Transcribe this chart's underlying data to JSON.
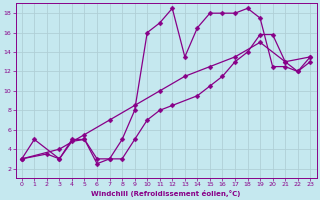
{
  "xlabel": "Windchill (Refroidissement éolien,°C)",
  "bg_color": "#c5e8ef",
  "line_color": "#880088",
  "grid_color": "#b0cfd6",
  "xlim": [
    -0.5,
    23.5
  ],
  "ylim": [
    1,
    19
  ],
  "xticks": [
    0,
    1,
    2,
    3,
    4,
    5,
    6,
    7,
    8,
    9,
    10,
    11,
    12,
    13,
    14,
    15,
    16,
    17,
    18,
    19,
    20,
    21,
    22,
    23
  ],
  "yticks": [
    2,
    4,
    6,
    8,
    10,
    12,
    14,
    16,
    18
  ],
  "line1_x": [
    0,
    1,
    3,
    4,
    5,
    6,
    7,
    8,
    9,
    10,
    11,
    12,
    13,
    14,
    15,
    16,
    17,
    18,
    19,
    20,
    21,
    22,
    23
  ],
  "line1_y": [
    3,
    5,
    3,
    5,
    5,
    3,
    3,
    5,
    8,
    16,
    17,
    18.5,
    13.5,
    16.5,
    18,
    18,
    18,
    18.5,
    17.5,
    12.5,
    12.5,
    12,
    13
  ],
  "line2_x": [
    0,
    3,
    5,
    7,
    9,
    11,
    13,
    15,
    17,
    19,
    21,
    23
  ],
  "line2_y": [
    3,
    4,
    5.5,
    7,
    8.5,
    10,
    11.5,
    12.5,
    13.5,
    15,
    13,
    13.5
  ],
  "line3_x": [
    0,
    2,
    3,
    4,
    5,
    6,
    7,
    8,
    9,
    10,
    11,
    12,
    14,
    15,
    16,
    17,
    18,
    19,
    20,
    21,
    22,
    23
  ],
  "line3_y": [
    3,
    3.5,
    3,
    4.8,
    5,
    2.5,
    3,
    3,
    5,
    7,
    8,
    8.5,
    9.5,
    10.5,
    11.5,
    13,
    14,
    15.8,
    15.8,
    13,
    12,
    13.5
  ]
}
